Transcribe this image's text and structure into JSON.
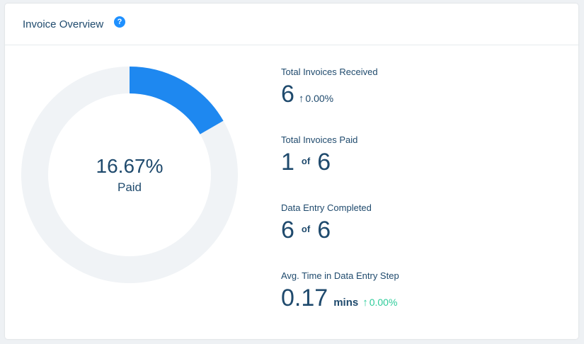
{
  "header": {
    "title": "Invoice Overview",
    "help_icon": "question-icon"
  },
  "donut": {
    "percent_text": "16.67%",
    "label": "Paid",
    "fraction": 0.1667,
    "fill_color": "#1e88f0",
    "track_color": "#f0f3f6"
  },
  "stats": {
    "received": {
      "label": "Total Invoices Received",
      "value": "6",
      "trend_arrow": "↑",
      "trend": "0.00%"
    },
    "paid": {
      "label": "Total Invoices Paid",
      "value": "1",
      "of": "of",
      "total": "6"
    },
    "data_entry": {
      "label": "Data Entry Completed",
      "value": "6",
      "of": "of",
      "total": "6"
    },
    "avg_time": {
      "label": "Avg. Time in Data Entry Step",
      "value": "0.17",
      "unit": "mins",
      "trend_arrow": "↑",
      "trend": "0.00%",
      "trend_color": "#2ecc9a"
    }
  }
}
